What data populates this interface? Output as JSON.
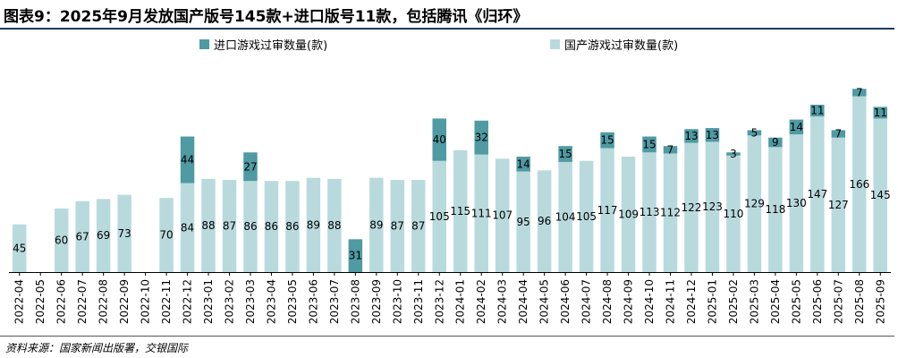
{
  "title": "图表9：2025年9月发放国产版号145款+进口版号11款，包括腾讯《归环》",
  "source": "资料来源：国家新闻出版署，交银国际",
  "colors": {
    "import": "#4f9aa3",
    "domestic": "#b9dadd"
  },
  "chart_data": {
    "type": "bar",
    "stacked": true,
    "categories": [
      "2022-04",
      "2022-05",
      "2022-06",
      "2022-07",
      "2022-08",
      "2022-09",
      "2022-10",
      "2022-11",
      "2022-12",
      "2023-01",
      "2023-02",
      "2023-03",
      "2023-04",
      "2023-05",
      "2023-06",
      "2023-07",
      "2023-08",
      "2023-09",
      "2023-10",
      "2023-11",
      "2023-12",
      "2024-01",
      "2024-02",
      "2024-03",
      "2024-04",
      "2024-05",
      "2024-06",
      "2024-07",
      "2024-08",
      "2024-09",
      "2024-10",
      "2024-11",
      "2024-12",
      "2025-01",
      "2025-02",
      "2025-03",
      "2025-04",
      "2025-05",
      "2025-06",
      "2025-07",
      "2025-08",
      "2025-09"
    ],
    "series": [
      {
        "name": "国产游戏过审数量(款)",
        "values": [
          45,
          0,
          60,
          67,
          69,
          73,
          0,
          70,
          84,
          88,
          87,
          86,
          86,
          86,
          89,
          88,
          0,
          89,
          87,
          87,
          105,
          115,
          111,
          107,
          95,
          96,
          104,
          105,
          117,
          109,
          113,
          112,
          122,
          123,
          110,
          129,
          118,
          130,
          147,
          127,
          166,
          145
        ]
      },
      {
        "name": "进口游戏过审数量(款)",
        "values": [
          0,
          0,
          0,
          0,
          0,
          0,
          0,
          0,
          44,
          0,
          0,
          27,
          0,
          0,
          0,
          0,
          31,
          0,
          0,
          0,
          40,
          0,
          32,
          0,
          14,
          0,
          15,
          0,
          15,
          0,
          15,
          7,
          13,
          13,
          3,
          5,
          9,
          14,
          11,
          7,
          7,
          11
        ]
      }
    ],
    "legend_position": "top",
    "ylim": [
      0,
      180
    ],
    "grid": false
  }
}
